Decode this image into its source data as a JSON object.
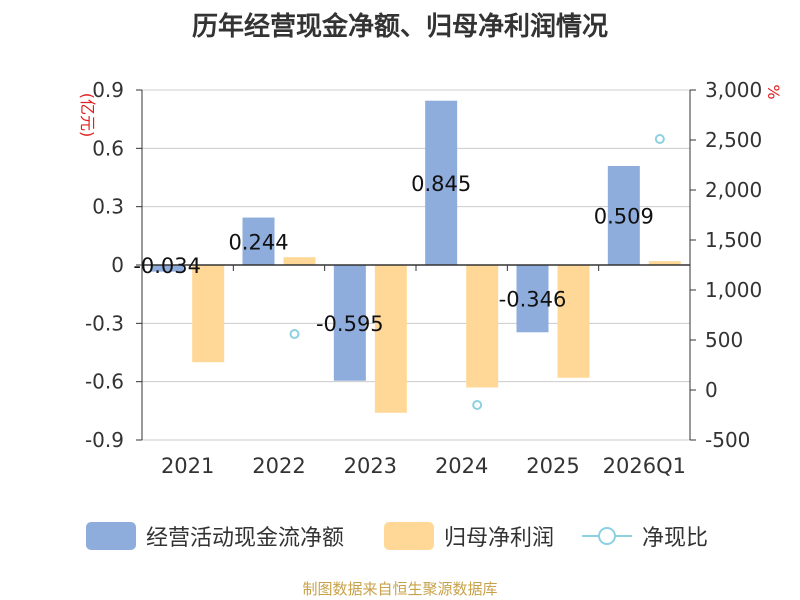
{
  "chart_data": {
    "type": "bar",
    "title": "历年经营现金净额、归母净利润情况",
    "categories": [
      "2021",
      "2022",
      "2023",
      "2024",
      "2025",
      "2026Q1"
    ],
    "left_axis": {
      "label": "(亿元)",
      "ylim": [
        -0.9,
        0.9
      ],
      "ticks": [
        "0.9",
        "0.6",
        "0.3",
        "0",
        "-0.3",
        "-0.6",
        "-0.9"
      ]
    },
    "right_axis": {
      "label": "%",
      "ylim": [
        -500,
        3000
      ],
      "ticks": [
        "3,000",
        "2,500",
        "2,000",
        "1,500",
        "1,000",
        "500",
        "0",
        "-500"
      ]
    },
    "series": [
      {
        "name": "经营活动现金流净额",
        "axis": "left",
        "color": "#8eacdc",
        "values": [
          -0.034,
          0.244,
          -0.595,
          0.845,
          -0.346,
          0.509
        ],
        "labels": [
          "-0.034",
          "0.244",
          "-0.595",
          "0.845",
          "-0.346",
          "0.509"
        ]
      },
      {
        "name": "归母净利润",
        "axis": "left",
        "color": "#ffd898",
        "values": [
          -0.5,
          0.04,
          -0.76,
          -0.63,
          -0.58,
          0.02
        ]
      },
      {
        "name": "净现比",
        "axis": "right",
        "color": "#8dd1e1",
        "type": "scatter",
        "values": [
          null,
          560,
          null,
          -150,
          null,
          2510
        ]
      }
    ],
    "grid": true,
    "legend_position": "bottom"
  },
  "source": "制图数据来自恒生聚源数据库"
}
